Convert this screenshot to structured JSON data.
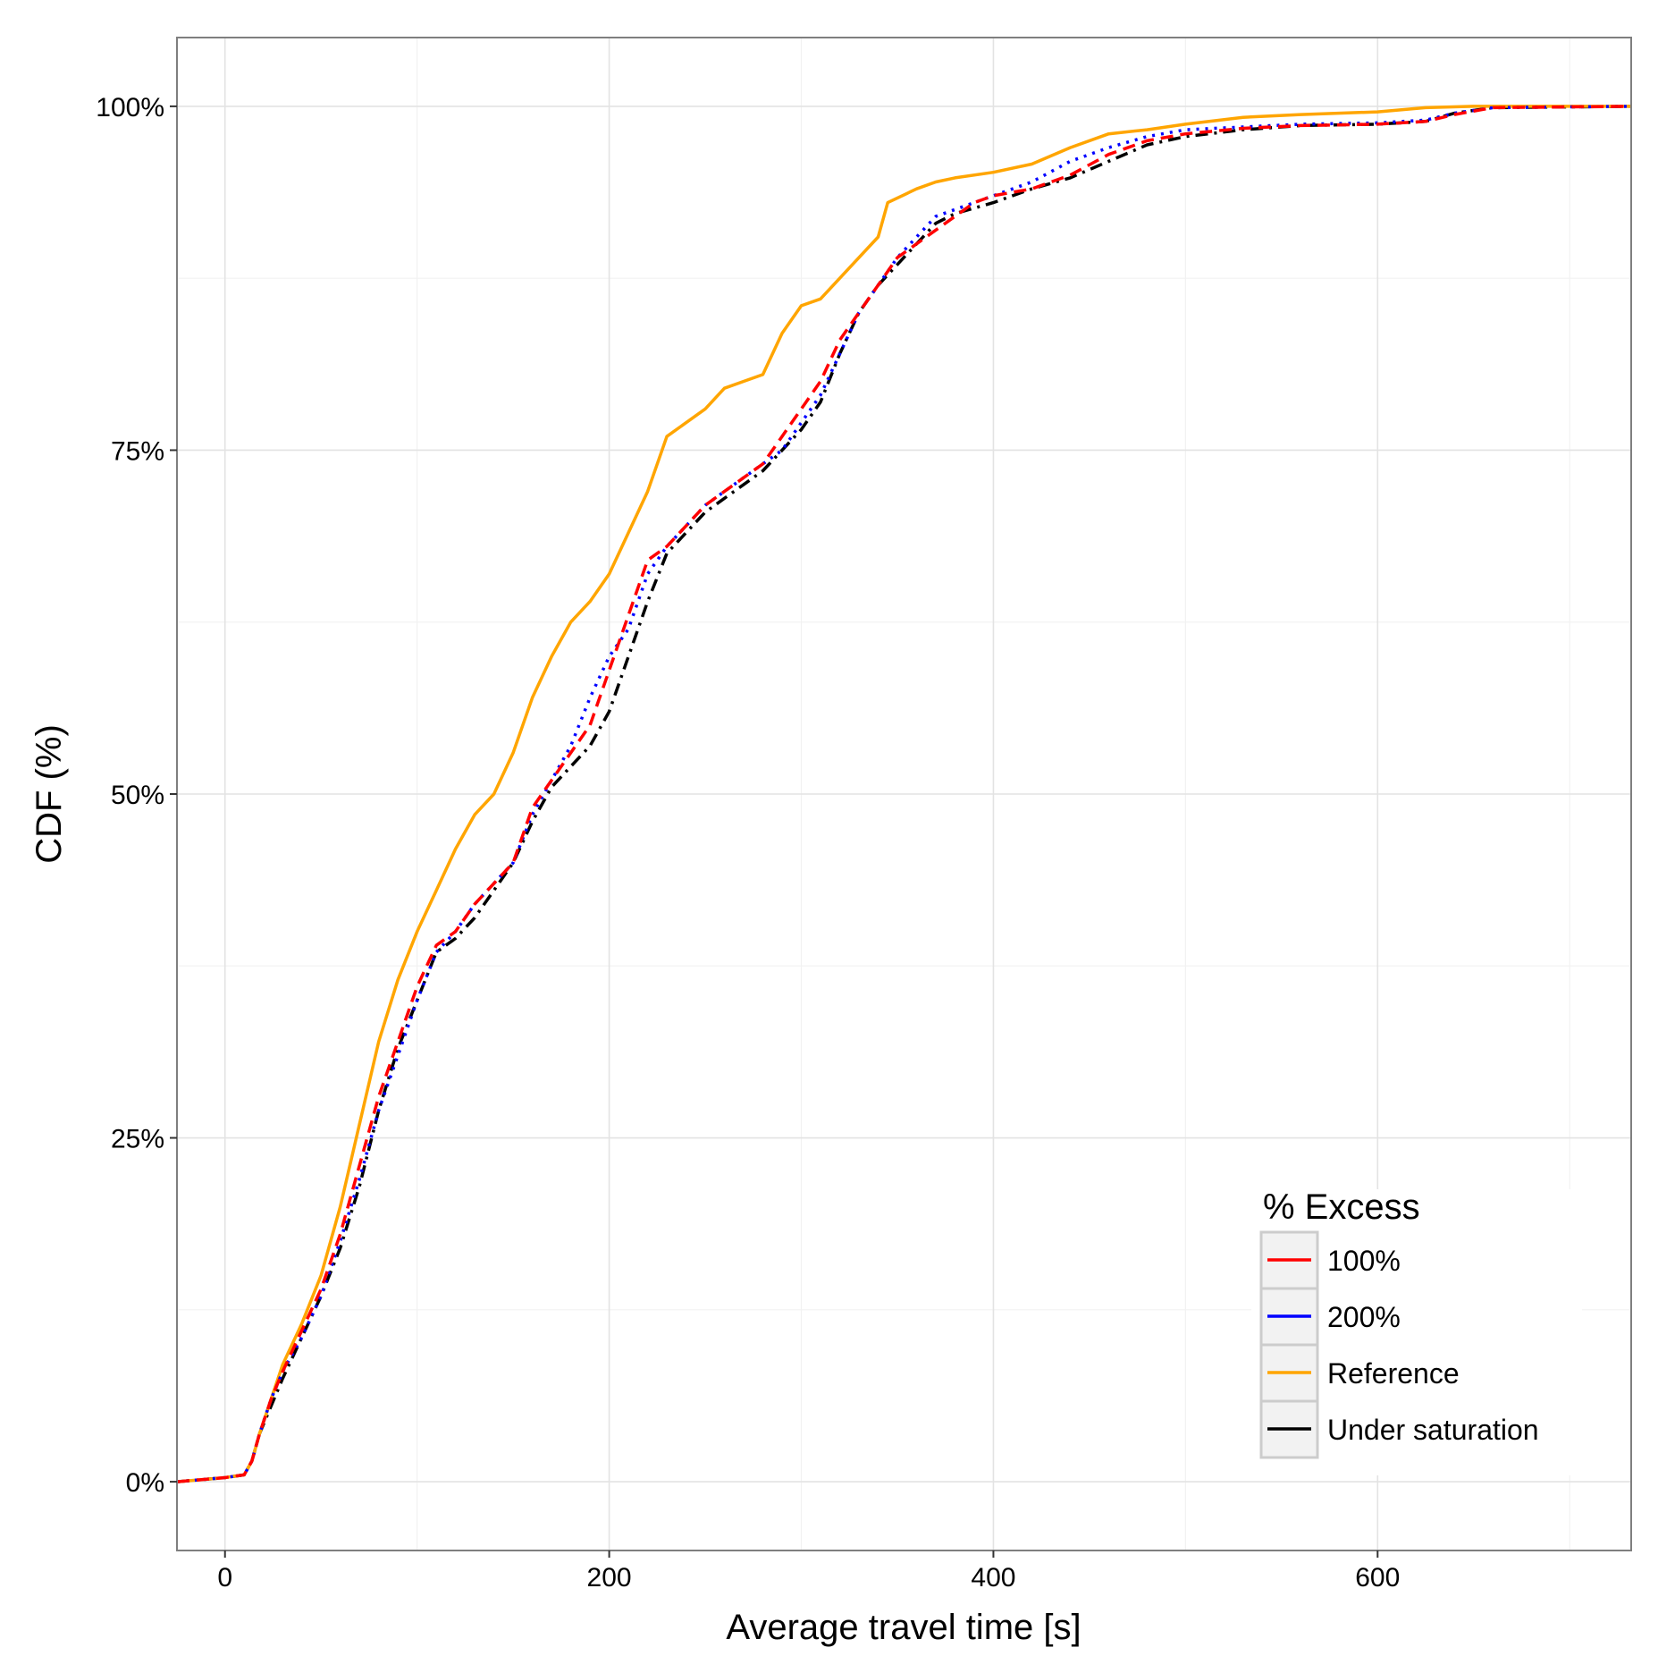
{
  "chart_data": {
    "type": "line",
    "title": "",
    "xlabel": "Average travel time [s]",
    "ylabel": "CDF (%)",
    "xlim": [
      -25,
      732
    ],
    "ylim": [
      -5,
      105
    ],
    "x_ticks": [
      0,
      200,
      400,
      600
    ],
    "x_tick_labels": [
      "0",
      "200",
      "400",
      "600"
    ],
    "y_ticks": [
      0,
      25,
      50,
      75,
      100
    ],
    "y_tick_labels": [
      "0%",
      "25%",
      "50%",
      "75%",
      "100%"
    ],
    "grid": true,
    "legend": {
      "title": "% Excess",
      "placement": "bottom-right"
    },
    "series": [
      {
        "name": "100%",
        "color": "#ff0000",
        "dash": "dashed",
        "points": [
          [
            -25,
            0
          ],
          [
            0,
            0.3
          ],
          [
            10,
            0.5
          ],
          [
            14,
            1.5
          ],
          [
            18,
            3.5
          ],
          [
            24,
            6
          ],
          [
            30,
            8
          ],
          [
            40,
            11
          ],
          [
            50,
            14
          ],
          [
            60,
            18
          ],
          [
            70,
            23
          ],
          [
            80,
            28
          ],
          [
            90,
            32
          ],
          [
            100,
            36
          ],
          [
            110,
            39
          ],
          [
            120,
            40
          ],
          [
            130,
            42
          ],
          [
            140,
            43.5
          ],
          [
            150,
            45
          ],
          [
            160,
            49
          ],
          [
            170,
            51
          ],
          [
            180,
            53
          ],
          [
            190,
            55
          ],
          [
            200,
            59
          ],
          [
            210,
            63
          ],
          [
            220,
            67
          ],
          [
            230,
            68
          ],
          [
            240,
            69.5
          ],
          [
            250,
            71
          ],
          [
            260,
            72
          ],
          [
            270,
            73
          ],
          [
            280,
            74
          ],
          [
            290,
            76
          ],
          [
            300,
            78
          ],
          [
            310,
            80
          ],
          [
            320,
            83
          ],
          [
            330,
            85
          ],
          [
            340,
            87
          ],
          [
            350,
            89
          ],
          [
            360,
            90
          ],
          [
            370,
            91
          ],
          [
            380,
            92
          ],
          [
            390,
            93
          ],
          [
            400,
            93.5
          ],
          [
            420,
            94
          ],
          [
            440,
            95
          ],
          [
            460,
            96.5
          ],
          [
            480,
            97.5
          ],
          [
            500,
            98
          ],
          [
            530,
            98.4
          ],
          [
            560,
            98.6
          ],
          [
            600,
            98.7
          ],
          [
            625,
            98.9
          ],
          [
            640,
            99.4
          ],
          [
            660,
            99.9
          ],
          [
            732,
            100
          ]
        ]
      },
      {
        "name": "200%",
        "color": "#0000ff",
        "dash": "dotted",
        "points": [
          [
            -25,
            0
          ],
          [
            0,
            0.3
          ],
          [
            10,
            0.5
          ],
          [
            14,
            1.5
          ],
          [
            18,
            3.5
          ],
          [
            24,
            6
          ],
          [
            30,
            8
          ],
          [
            40,
            10.5
          ],
          [
            50,
            13.5
          ],
          [
            60,
            17.5
          ],
          [
            70,
            22
          ],
          [
            80,
            27
          ],
          [
            90,
            31
          ],
          [
            100,
            35
          ],
          [
            110,
            38.5
          ],
          [
            120,
            40
          ],
          [
            130,
            42
          ],
          [
            140,
            43.5
          ],
          [
            150,
            45
          ],
          [
            160,
            48.5
          ],
          [
            170,
            51
          ],
          [
            180,
            53.5
          ],
          [
            190,
            57
          ],
          [
            200,
            60
          ],
          [
            210,
            62
          ],
          [
            220,
            66
          ],
          [
            230,
            68
          ],
          [
            240,
            69.5
          ],
          [
            250,
            71
          ],
          [
            260,
            72
          ],
          [
            270,
            73
          ],
          [
            280,
            74
          ],
          [
            290,
            75
          ],
          [
            300,
            77
          ],
          [
            310,
            79
          ],
          [
            320,
            82
          ],
          [
            330,
            85
          ],
          [
            340,
            87
          ],
          [
            350,
            89
          ],
          [
            360,
            90.5
          ],
          [
            370,
            92
          ],
          [
            380,
            92.5
          ],
          [
            390,
            93
          ],
          [
            400,
            93.5
          ],
          [
            420,
            94.5
          ],
          [
            440,
            96
          ],
          [
            460,
            97
          ],
          [
            480,
            97.8
          ],
          [
            500,
            98.3
          ],
          [
            530,
            98.5
          ],
          [
            560,
            98.7
          ],
          [
            600,
            98.8
          ],
          [
            625,
            99
          ],
          [
            640,
            99.5
          ],
          [
            660,
            99.9
          ],
          [
            732,
            100
          ]
        ]
      },
      {
        "name": "Reference",
        "color": "#ffa500",
        "dash": "solid",
        "points": [
          [
            -25,
            0
          ],
          [
            0,
            0.3
          ],
          [
            10,
            0.5
          ],
          [
            14,
            1.5
          ],
          [
            18,
            3.5
          ],
          [
            24,
            6
          ],
          [
            30,
            8.5
          ],
          [
            40,
            11.5
          ],
          [
            50,
            15
          ],
          [
            60,
            20
          ],
          [
            70,
            26
          ],
          [
            80,
            32
          ],
          [
            90,
            36.5
          ],
          [
            100,
            40
          ],
          [
            110,
            43
          ],
          [
            120,
            46
          ],
          [
            130,
            48.5
          ],
          [
            140,
            50
          ],
          [
            150,
            53
          ],
          [
            160,
            57
          ],
          [
            170,
            60
          ],
          [
            180,
            62.5
          ],
          [
            190,
            64
          ],
          [
            200,
            66
          ],
          [
            210,
            69
          ],
          [
            220,
            72
          ],
          [
            230,
            76
          ],
          [
            240,
            77
          ],
          [
            250,
            78
          ],
          [
            260,
            79.5
          ],
          [
            270,
            80
          ],
          [
            280,
            80.5
          ],
          [
            290,
            83.5
          ],
          [
            300,
            85.5
          ],
          [
            310,
            86
          ],
          [
            320,
            87.5
          ],
          [
            330,
            89
          ],
          [
            340,
            90.5
          ],
          [
            345,
            93
          ],
          [
            360,
            94
          ],
          [
            370,
            94.5
          ],
          [
            380,
            94.8
          ],
          [
            400,
            95.2
          ],
          [
            420,
            95.8
          ],
          [
            440,
            97
          ],
          [
            460,
            98
          ],
          [
            480,
            98.3
          ],
          [
            500,
            98.7
          ],
          [
            530,
            99.2
          ],
          [
            560,
            99.4
          ],
          [
            600,
            99.6
          ],
          [
            625,
            99.9
          ],
          [
            650,
            100
          ],
          [
            732,
            100
          ]
        ]
      },
      {
        "name": "Under saturation",
        "color": "#000000",
        "dash": "dashdot",
        "points": [
          [
            -25,
            0
          ],
          [
            0,
            0.3
          ],
          [
            10,
            0.5
          ],
          [
            14,
            1.5
          ],
          [
            18,
            3.5
          ],
          [
            24,
            5.5
          ],
          [
            30,
            7.5
          ],
          [
            40,
            10.5
          ],
          [
            50,
            13.5
          ],
          [
            60,
            17
          ],
          [
            70,
            21.5
          ],
          [
            80,
            27
          ],
          [
            90,
            31.5
          ],
          [
            100,
            35
          ],
          [
            110,
            38.5
          ],
          [
            120,
            39.5
          ],
          [
            130,
            41
          ],
          [
            140,
            43
          ],
          [
            150,
            45
          ],
          [
            160,
            48
          ],
          [
            170,
            50.5
          ],
          [
            180,
            52
          ],
          [
            190,
            53.5
          ],
          [
            200,
            56
          ],
          [
            210,
            60
          ],
          [
            220,
            64
          ],
          [
            230,
            67.5
          ],
          [
            240,
            69
          ],
          [
            250,
            70.5
          ],
          [
            260,
            71.5
          ],
          [
            270,
            72.5
          ],
          [
            280,
            73.5
          ],
          [
            290,
            75
          ],
          [
            300,
            76.5
          ],
          [
            310,
            78.5
          ],
          [
            320,
            82
          ],
          [
            330,
            85
          ],
          [
            340,
            87
          ],
          [
            350,
            88.5
          ],
          [
            360,
            90
          ],
          [
            370,
            91.5
          ],
          [
            380,
            92.2
          ],
          [
            400,
            93
          ],
          [
            420,
            94
          ],
          [
            440,
            94.8
          ],
          [
            460,
            96
          ],
          [
            480,
            97.2
          ],
          [
            500,
            97.8
          ],
          [
            530,
            98.3
          ],
          [
            560,
            98.6
          ],
          [
            600,
            98.7
          ],
          [
            625,
            98.9
          ],
          [
            640,
            99.5
          ],
          [
            660,
            99.9
          ],
          [
            732,
            100
          ]
        ]
      }
    ]
  }
}
